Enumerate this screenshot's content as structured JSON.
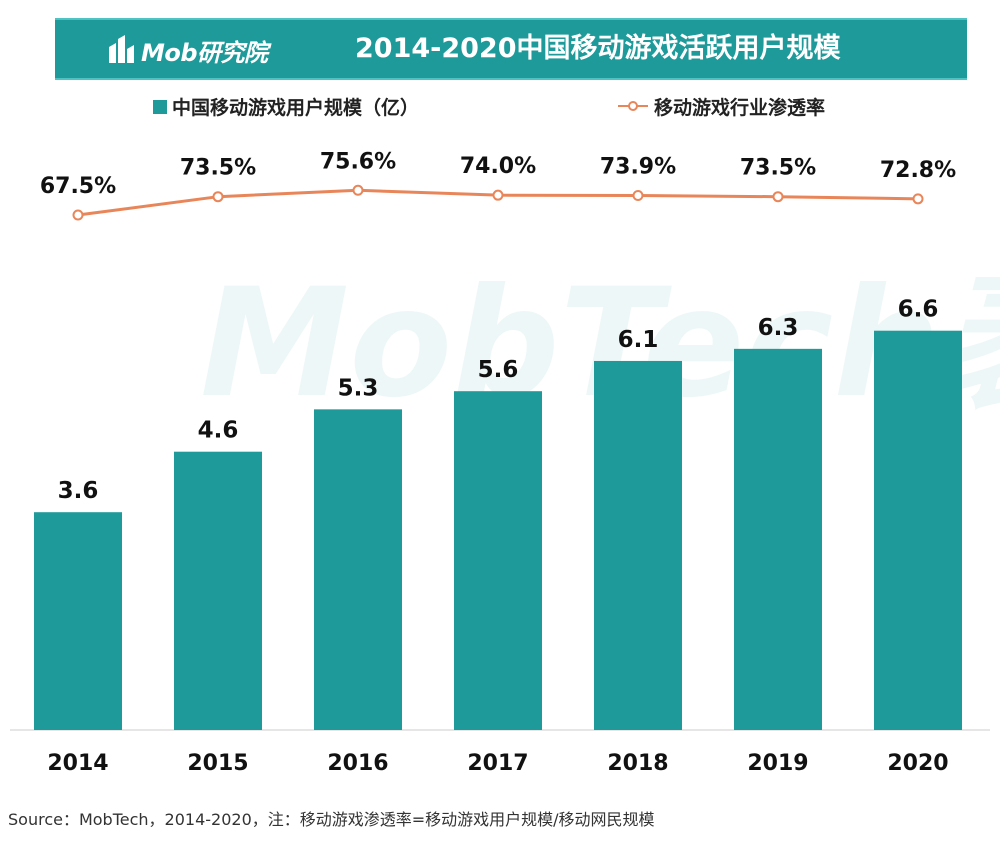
{
  "header": {
    "logo_text": "Mob研究院",
    "title": "2014-2020中国移动游戏活跃用户规模"
  },
  "watermark": "MobTech袤博",
  "colors": {
    "header_bg": "#1e9a9a",
    "bar": "#1e9a9a",
    "line": "#e8865a",
    "text": "#111111"
  },
  "chart_data": {
    "type": "bar",
    "title": "2014-2020中国移动游戏活跃用户规模",
    "categories": [
      "2014",
      "2015",
      "2016",
      "2017",
      "2018",
      "2019",
      "2020"
    ],
    "series": [
      {
        "name": "中国移动游戏用户规模（亿）",
        "type": "bar",
        "values": [
          3.6,
          4.6,
          5.3,
          5.6,
          6.1,
          6.3,
          6.6
        ],
        "labels": [
          "3.6",
          "4.6",
          "5.3",
          "5.6",
          "6.1",
          "6.3",
          "6.6"
        ]
      },
      {
        "name": "移动游戏行业渗透率",
        "type": "line",
        "values": [
          67.5,
          73.5,
          75.6,
          74.0,
          73.9,
          73.5,
          72.8
        ],
        "labels": [
          "67.5%",
          "73.5%",
          "75.6%",
          "74.0%",
          "73.9%",
          "73.5%",
          "72.8%"
        ]
      }
    ],
    "ylim": [
      0,
      7.5
    ],
    "legend": "top",
    "grid": false
  },
  "source": "Source：MobTech，2014-2020，注：移动游戏渗透率=移动游戏用户规模/移动网民规模"
}
